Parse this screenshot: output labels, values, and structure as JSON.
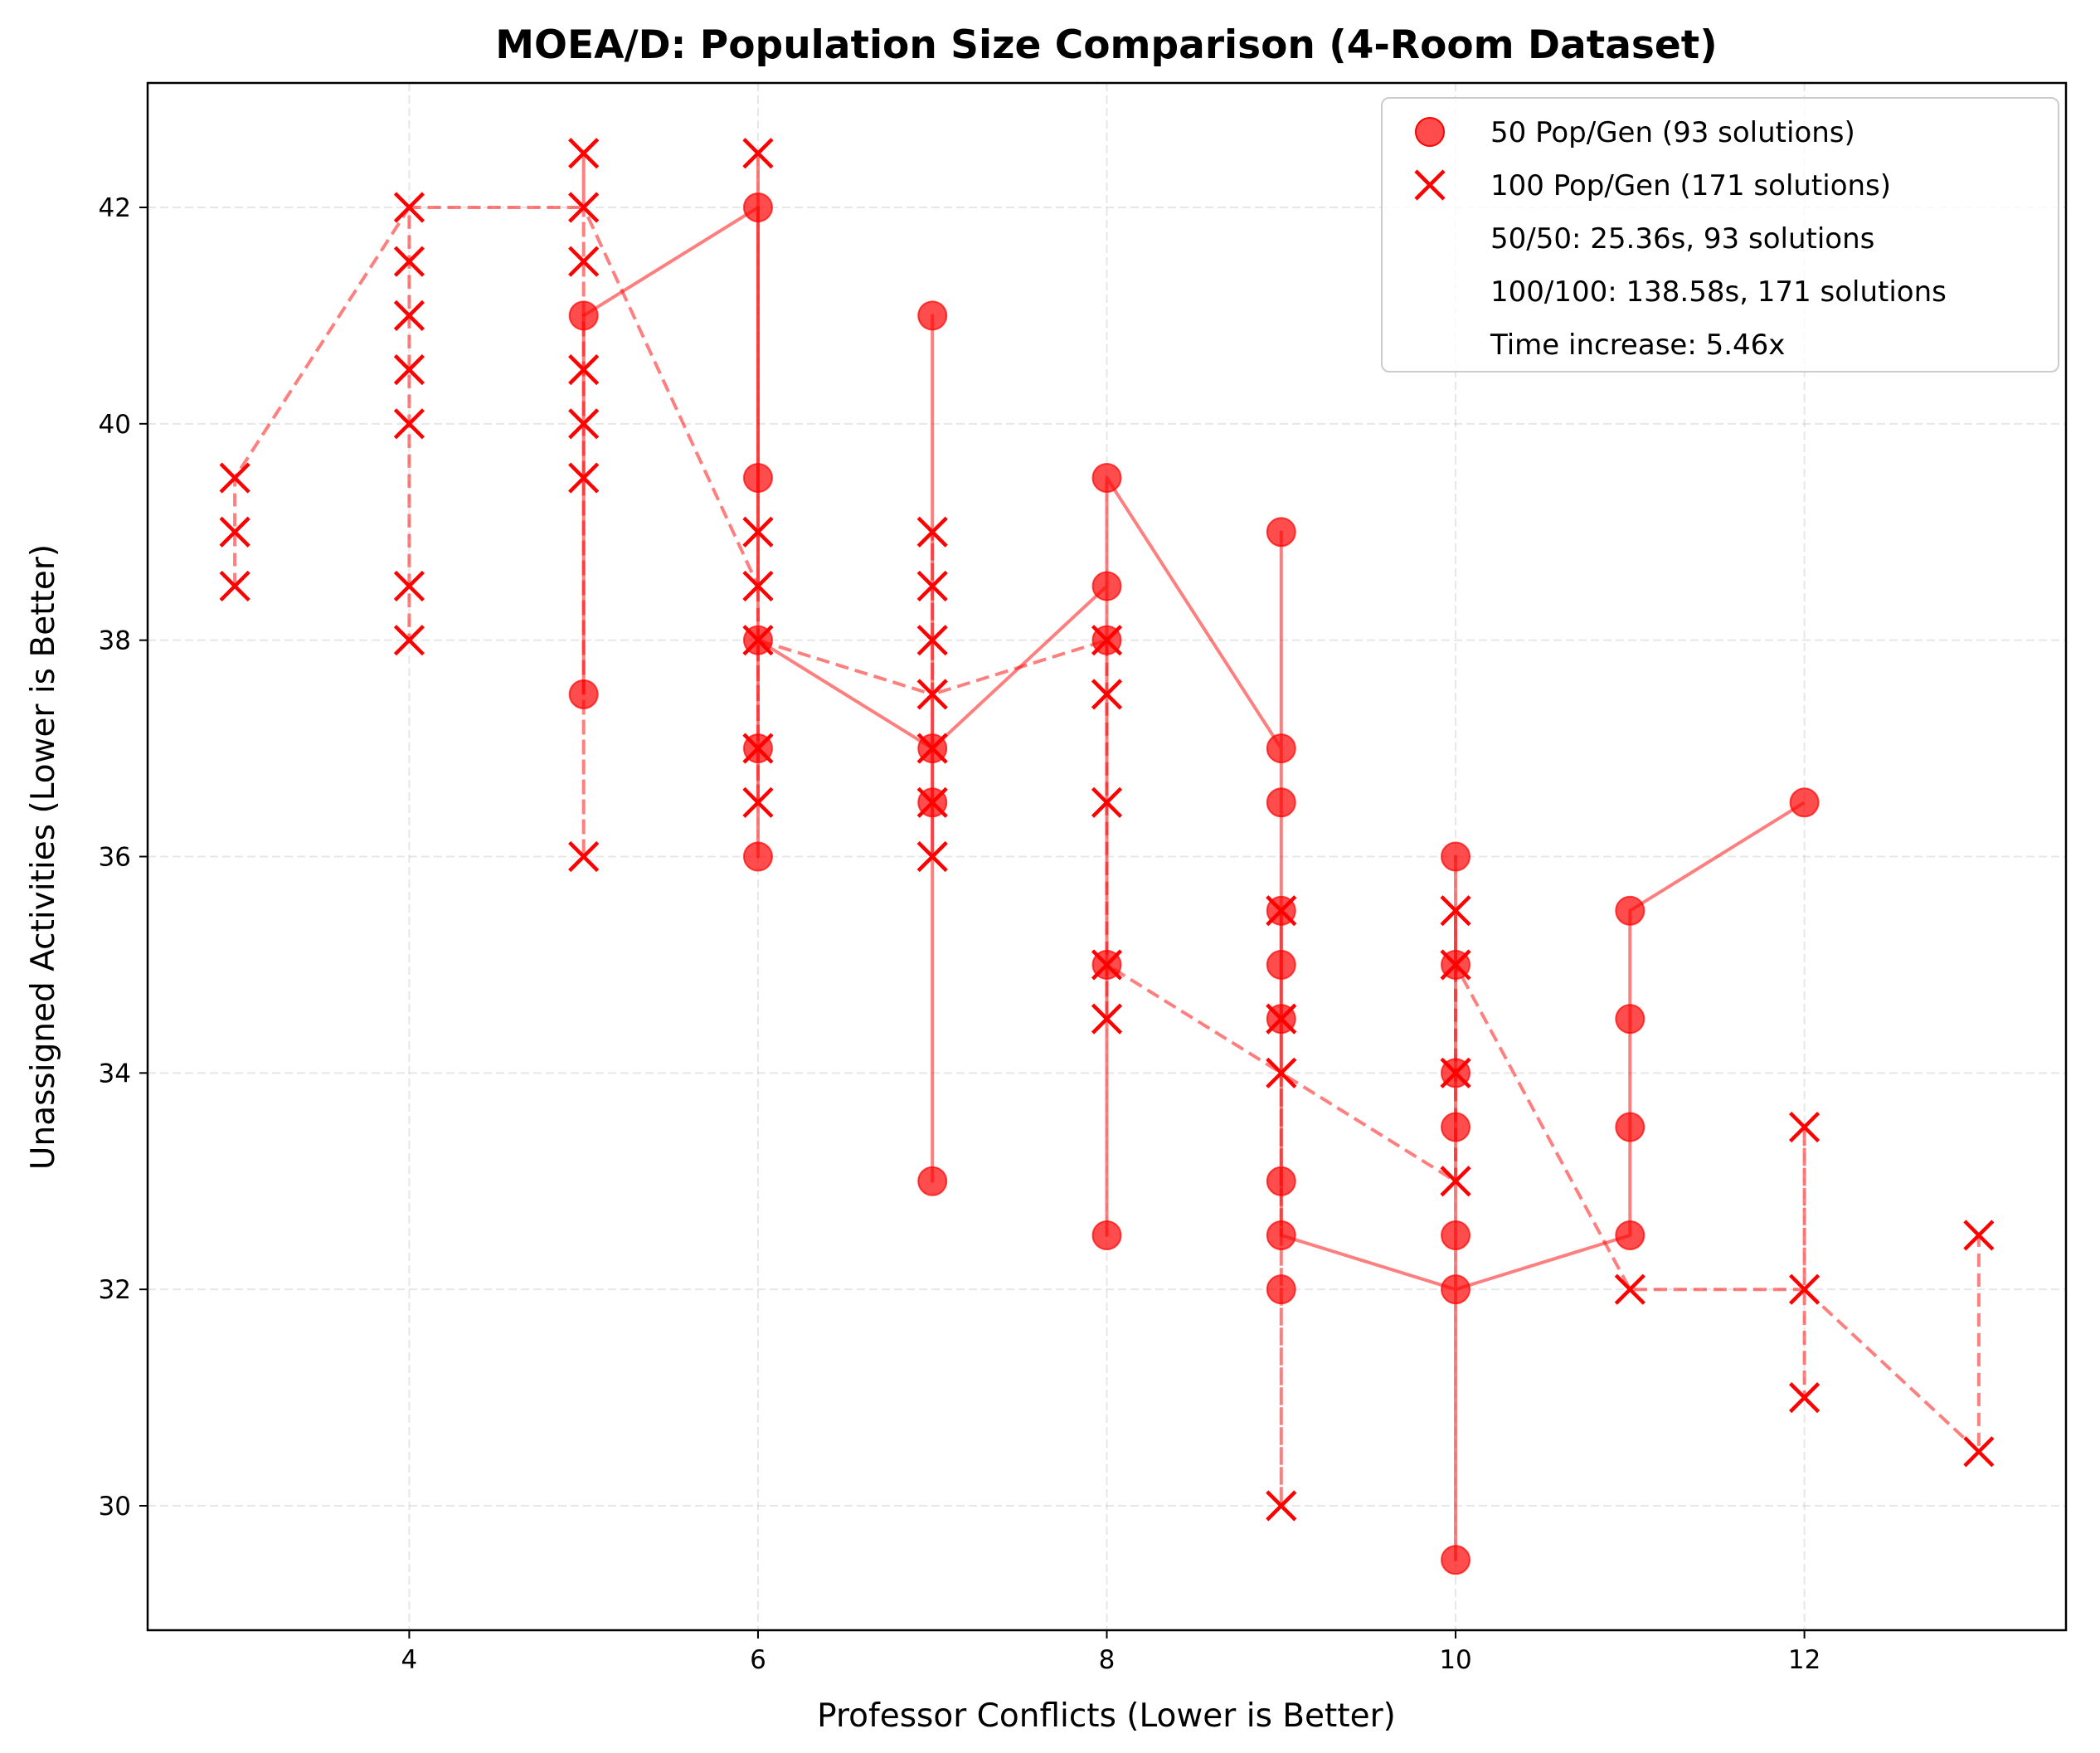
{
  "chart_data": {
    "type": "scatter",
    "title": "MOEA/D: Population Size Comparison (4-Room Dataset)",
    "xlabel": "Professor Conflicts (Lower is Better)",
    "ylabel": "Unassigned Activities (Lower is Better)",
    "xlim": [
      2.5,
      13.5
    ],
    "ylim": [
      28.85,
      43.15
    ],
    "xticks": [
      4,
      6,
      8,
      10,
      12
    ],
    "yticks": [
      30,
      32,
      34,
      36,
      38,
      40,
      42
    ],
    "grid": true,
    "legend_position": "top-right",
    "color": "#ff0000",
    "series": [
      {
        "name": "50 Pop/Gen (93 solutions)",
        "marker": "circle",
        "line_style": "solid",
        "points": [
          [
            5,
            41
          ],
          [
            5,
            37.5
          ],
          [
            6,
            42
          ],
          [
            6,
            39.5
          ],
          [
            6,
            38
          ],
          [
            6,
            37
          ],
          [
            6,
            36
          ],
          [
            7,
            41
          ],
          [
            7,
            37
          ],
          [
            7,
            36.5
          ],
          [
            7,
            33
          ],
          [
            8,
            39.5
          ],
          [
            8,
            38.5
          ],
          [
            8,
            38
          ],
          [
            8,
            35
          ],
          [
            8,
            32.5
          ],
          [
            9,
            39
          ],
          [
            9,
            37
          ],
          [
            9,
            36.5
          ],
          [
            9,
            35.5
          ],
          [
            9,
            35
          ],
          [
            9,
            34.5
          ],
          [
            9,
            33
          ],
          [
            9,
            32.5
          ],
          [
            9,
            32
          ],
          [
            10,
            36
          ],
          [
            10,
            35
          ],
          [
            10,
            34
          ],
          [
            10,
            33.5
          ],
          [
            10,
            32.5
          ],
          [
            10,
            32
          ],
          [
            10,
            29.5
          ],
          [
            11,
            35.5
          ],
          [
            11,
            34.5
          ],
          [
            11,
            33.5
          ],
          [
            11,
            32.5
          ],
          [
            12,
            36.5
          ]
        ],
        "line": [
          [
            5,
            37.5
          ],
          [
            5,
            41
          ],
          [
            6,
            42
          ],
          [
            6,
            36
          ],
          [
            6,
            38
          ],
          [
            7,
            37
          ],
          [
            7,
            41
          ],
          [
            7,
            33
          ],
          [
            7,
            37
          ],
          [
            8,
            38.5
          ],
          [
            8,
            39.5
          ],
          [
            8,
            32.5
          ],
          [
            8,
            39.5
          ],
          [
            9,
            37
          ],
          [
            9,
            39
          ],
          [
            9,
            32.5
          ],
          [
            10,
            32
          ],
          [
            10,
            36
          ],
          [
            10,
            29.5
          ],
          [
            10,
            32
          ],
          [
            11,
            32.5
          ],
          [
            11,
            35.5
          ],
          [
            12,
            36.5
          ]
        ]
      },
      {
        "name": "100 Pop/Gen (171 solutions)",
        "marker": "x",
        "line_style": "dashed",
        "points": [
          [
            3,
            39.5
          ],
          [
            3,
            39
          ],
          [
            3,
            38.5
          ],
          [
            4,
            42
          ],
          [
            4,
            41.5
          ],
          [
            4,
            41
          ],
          [
            4,
            40.5
          ],
          [
            4,
            40
          ],
          [
            4,
            38.5
          ],
          [
            4,
            38
          ],
          [
            5,
            42.5
          ],
          [
            5,
            42
          ],
          [
            5,
            41.5
          ],
          [
            5,
            40.5
          ],
          [
            5,
            40
          ],
          [
            5,
            39.5
          ],
          [
            5,
            36
          ],
          [
            6,
            42.5
          ],
          [
            6,
            39
          ],
          [
            6,
            38.5
          ],
          [
            6,
            38
          ],
          [
            6,
            37
          ],
          [
            6,
            36.5
          ],
          [
            7,
            39
          ],
          [
            7,
            38.5
          ],
          [
            7,
            38
          ],
          [
            7,
            37.5
          ],
          [
            7,
            37
          ],
          [
            7,
            36.5
          ],
          [
            7,
            36
          ],
          [
            8,
            38
          ],
          [
            8,
            37.5
          ],
          [
            8,
            36.5
          ],
          [
            8,
            35
          ],
          [
            8,
            34.5
          ],
          [
            9,
            35.5
          ],
          [
            9,
            34.5
          ],
          [
            9,
            34
          ],
          [
            9,
            30
          ],
          [
            10,
            35.5
          ],
          [
            10,
            35
          ],
          [
            10,
            34
          ],
          [
            10,
            33
          ],
          [
            11,
            32
          ],
          [
            12,
            33.5
          ],
          [
            12,
            32
          ],
          [
            12,
            31
          ],
          [
            13,
            32.5
          ],
          [
            13,
            30.5
          ]
        ],
        "line": [
          [
            3,
            38.5
          ],
          [
            3,
            39.5
          ],
          [
            4,
            42
          ],
          [
            4,
            38
          ],
          [
            4,
            42
          ],
          [
            5,
            42
          ],
          [
            5,
            42.5
          ],
          [
            5,
            36
          ],
          [
            5,
            42
          ],
          [
            6,
            38.5
          ],
          [
            6,
            42.5
          ],
          [
            6,
            36.5
          ],
          [
            6,
            38
          ],
          [
            7,
            37.5
          ],
          [
            7,
            39
          ],
          [
            7,
            36
          ],
          [
            7,
            37.5
          ],
          [
            8,
            38
          ],
          [
            8,
            34.5
          ],
          [
            8,
            35
          ],
          [
            9,
            34
          ],
          [
            9,
            35.5
          ],
          [
            9,
            30
          ],
          [
            9,
            34
          ],
          [
            10,
            33
          ],
          [
            10,
            35.5
          ],
          [
            10,
            35
          ],
          [
            11,
            32
          ],
          [
            12,
            32
          ],
          [
            12,
            33.5
          ],
          [
            12,
            31
          ],
          [
            12,
            32
          ],
          [
            13,
            30.5
          ],
          [
            13,
            32.5
          ]
        ]
      }
    ],
    "legend_extra": [
      "50/50: 25.36s, 93 solutions",
      "100/100: 138.58s, 171 solutions",
      "Time increase: 5.46x"
    ]
  }
}
